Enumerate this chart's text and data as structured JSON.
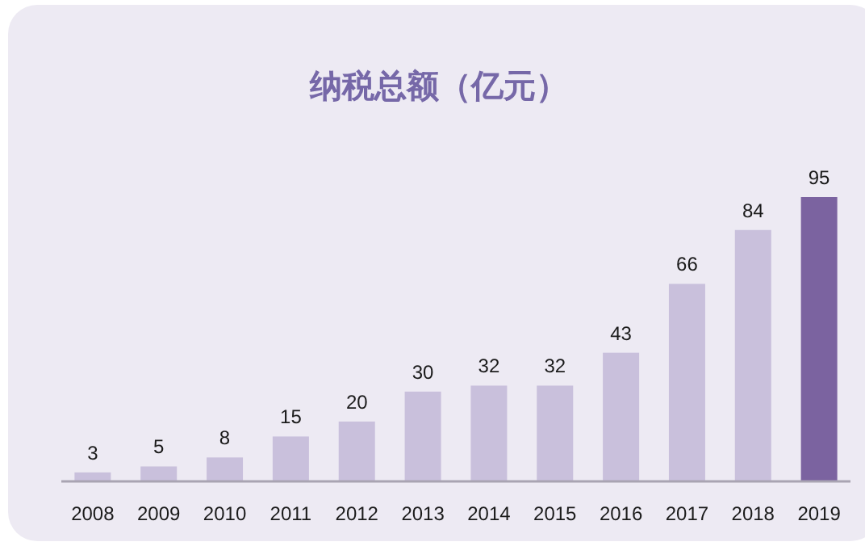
{
  "chart_data": {
    "type": "bar",
    "title": "纳税总额（亿元）",
    "categories": [
      "2008",
      "2009",
      "2010",
      "2011",
      "2012",
      "2013",
      "2014",
      "2015",
      "2016",
      "2017",
      "2018",
      "2019"
    ],
    "values": [
      3,
      5,
      8,
      15,
      20,
      30,
      32,
      32,
      43,
      66,
      84,
      95
    ],
    "colors": [
      "#c9c0dc",
      "#c9c0dc",
      "#c9c0dc",
      "#c9c0dc",
      "#c9c0dc",
      "#c9c0dc",
      "#c9c0dc",
      "#c9c0dc",
      "#c9c0dc",
      "#c9c0dc",
      "#c9c0dc",
      "#7b63a0"
    ],
    "data_labels": true
  }
}
